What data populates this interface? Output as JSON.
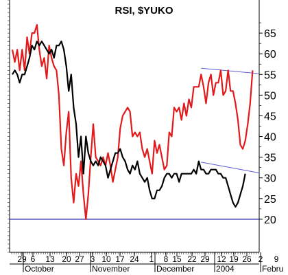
{
  "chart_data": {
    "type": "line",
    "title": "RSI, $YUKO",
    "ylim": [
      12,
      73
    ],
    "right_axis_ticks": [
      20,
      25,
      30,
      35,
      40,
      45,
      50,
      55,
      60,
      65
    ],
    "x_day_ticks": [
      "29",
      "6",
      "13",
      "20",
      "27",
      "3",
      "10",
      "17",
      "24",
      "1",
      "8",
      "15",
      "22",
      "29",
      "12",
      "19",
      "26",
      "2",
      "9"
    ],
    "x_month_labels": [
      "October",
      "November",
      "December",
      "2004",
      "Febru"
    ],
    "horizontal_reference": 20,
    "series": [
      {
        "color": "#e31a1c",
        "values": [
          61,
          58,
          61,
          56,
          61,
          56,
          64,
          60,
          65,
          65,
          67,
          61,
          57,
          59,
          54,
          62,
          59,
          57,
          56,
          50,
          37,
          33,
          41,
          46,
          30,
          24,
          31,
          28,
          34,
          26,
          20,
          26,
          35,
          43,
          35,
          34,
          33,
          35,
          33,
          36,
          33,
          29,
          32,
          35,
          42,
          45,
          46,
          47,
          46,
          40,
          41,
          40,
          41,
          37,
          35,
          37,
          34,
          31,
          39,
          36,
          38,
          35,
          32,
          33,
          41,
          40,
          47,
          46,
          47,
          44,
          48,
          45,
          49,
          47,
          52,
          52,
          52,
          55,
          52,
          48,
          53,
          55,
          50,
          53,
          53,
          56,
          50,
          51,
          56,
          51,
          51,
          48,
          44,
          38,
          37,
          39,
          43,
          48,
          56
        ]
      },
      {
        "color": "#000000",
        "values": [
          55,
          56,
          55,
          53,
          55,
          55,
          57,
          59,
          62,
          61,
          63,
          62,
          63,
          62,
          61,
          60,
          61,
          59,
          62,
          62,
          63,
          61,
          57,
          51,
          55,
          47,
          43,
          35,
          40,
          31,
          40,
          36,
          34,
          33,
          34,
          33,
          35,
          34,
          33,
          30,
          32,
          34,
          36,
          36,
          37,
          35,
          34,
          32,
          31,
          33,
          32,
          34,
          31,
          30,
          29,
          30,
          27,
          25,
          25,
          27,
          27,
          28,
          30,
          31,
          31,
          30,
          31,
          31,
          29,
          31,
          31,
          31,
          31,
          31,
          32,
          31,
          34,
          32,
          32,
          31,
          31,
          32,
          32,
          32,
          31,
          31,
          30,
          30,
          28,
          26,
          24,
          23,
          24,
          26,
          28,
          31
        ]
      }
    ],
    "trendlines": [
      {
        "color": "#5b5bd6",
        "from": [
          77,
          56.5
        ],
        "to": [
          98,
          55.2
        ]
      },
      {
        "color": "#5b5bd6",
        "from": [
          77,
          33.8
        ],
        "to": [
          98,
          31.2
        ]
      }
    ]
  }
}
